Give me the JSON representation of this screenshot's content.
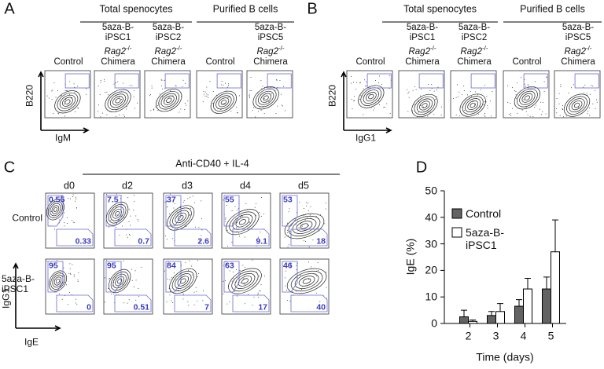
{
  "panel_a": {
    "letter": "A",
    "groups": [
      "Total spenocytes",
      "Purified B cells"
    ],
    "columns": [
      {
        "name": "Control"
      },
      {
        "name": "5aza-B-iPSC1",
        "gene": "Rag2",
        "genotype": "-/-",
        "suffix": "Chimera"
      },
      {
        "name": "5aza-B-iPSC2",
        "gene": "Rag2",
        "genotype": "-/-",
        "suffix": "Chimera"
      },
      {
        "name": "Control"
      },
      {
        "name": "5aza-B-iPSC5",
        "gene": "Rag2",
        "genotype": "-/-",
        "suffix": "Chimera"
      }
    ],
    "y_axis": "B220",
    "x_axis": "IgM"
  },
  "panel_b": {
    "letter": "B",
    "groups": [
      "Total spenocytes",
      "Purified B cells"
    ],
    "columns": [
      {
        "name": "Control"
      },
      {
        "name": "5aza-B-iPSC1",
        "gene": "Rag2",
        "genotype": "-/-",
        "suffix": "Chimera"
      },
      {
        "name": "5aza-B-iPSC2",
        "gene": "Rag2",
        "genotype": "-/-",
        "suffix": "Chimera"
      },
      {
        "name": "Control"
      },
      {
        "name": "5aza-B-iPSC5",
        "gene": "Rag2",
        "genotype": "-/-",
        "suffix": "Chimera"
      }
    ],
    "y_axis": "B220",
    "x_axis": "IgG1"
  },
  "panel_c": {
    "letter": "C",
    "treatment": "Anti-CD40 + IL-4",
    "days": [
      "d0",
      "d2",
      "d3",
      "d4",
      "d5"
    ],
    "rows": [
      {
        "name": "Control",
        "upper": [
          0.55,
          7.5,
          37,
          55,
          53
        ],
        "lower": [
          0.33,
          0.7,
          2.6,
          9.1,
          18
        ]
      },
      {
        "name": "5aza-B-iPSC1",
        "upper": [
          95,
          95,
          84,
          63,
          46
        ],
        "lower": [
          0,
          0.51,
          7,
          17,
          40
        ]
      }
    ],
    "y_axis": "IgG1",
    "x_axis": "IgE"
  },
  "panel_d": {
    "letter": "D"
  },
  "chart_data": {
    "type": "bar",
    "categories": [
      "2",
      "3",
      "4",
      "5"
    ],
    "series": [
      {
        "name": "Control",
        "color": "#636363",
        "values": [
          2.5,
          3,
          6.5,
          13
        ],
        "errors": [
          2.5,
          1.5,
          2.5,
          4.5
        ]
      },
      {
        "name": "5aza-B-iPSC1",
        "color": "#ffffff",
        "values": [
          0.8,
          4.5,
          13,
          27
        ],
        "errors": [
          0.5,
          3,
          4,
          12
        ]
      }
    ],
    "x_label": "Time (days)",
    "y_label": "IgE (%)",
    "ylim": [
      0,
      50
    ],
    "yticks": [
      0,
      10,
      20,
      30,
      40,
      50
    ]
  }
}
